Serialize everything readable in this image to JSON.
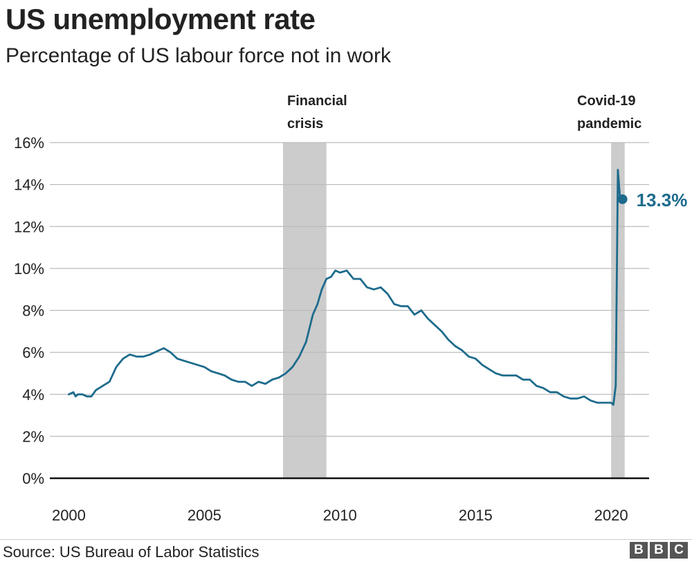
{
  "title": "US unemployment rate",
  "subtitle": "Percentage of US labour force not in work",
  "source": "Source: US Bureau of Labor Statistics",
  "logo": [
    "B",
    "B",
    "C"
  ],
  "colors": {
    "line": "#1d6b8c",
    "band": "#cccccc",
    "grid": "#bbbbbb",
    "text": "#222222"
  },
  "chart_data": {
    "type": "line",
    "title": "US unemployment rate",
    "ylabel": "",
    "xlabel": "",
    "xlim": [
      1999.3,
      2021.4
    ],
    "ylim": [
      0,
      16
    ],
    "grid": true,
    "x_ticks": [
      {
        "value": 2000,
        "label": "2000"
      },
      {
        "value": 2005,
        "label": "2005"
      },
      {
        "value": 2010,
        "label": "2010"
      },
      {
        "value": 2015,
        "label": "2015"
      },
      {
        "value": 2020,
        "label": "2020"
      }
    ],
    "y_ticks": [
      {
        "value": 0,
        "label": "0%"
      },
      {
        "value": 2,
        "label": "2%"
      },
      {
        "value": 4,
        "label": "4%"
      },
      {
        "value": 6,
        "label": "6%"
      },
      {
        "value": 8,
        "label": "8%"
      },
      {
        "value": 10,
        "label": "10%"
      },
      {
        "value": 12,
        "label": "12%"
      },
      {
        "value": 14,
        "label": "14%"
      },
      {
        "value": 16,
        "label": "16%"
      }
    ],
    "shaded_periods": [
      {
        "label": [
          "Financial",
          "crisis"
        ],
        "start": 2007.9,
        "end": 2009.5
      },
      {
        "label": [
          "Covid-19",
          "pandemic"
        ],
        "start": 2020.0,
        "end": 2020.5
      }
    ],
    "series": [
      {
        "x": [
          2000.0,
          2000.17,
          2000.25,
          2000.33,
          2000.5,
          2000.67,
          2000.83,
          2001.0,
          2001.25,
          2001.5,
          2001.75,
          2002.0,
          2002.25,
          2002.5,
          2002.75,
          2003.0,
          2003.17,
          2003.33,
          2003.5,
          2003.75,
          2004.0,
          2004.25,
          2004.5,
          2004.75,
          2005.0,
          2005.25,
          2005.5,
          2005.75,
          2006.0,
          2006.25,
          2006.5,
          2006.75,
          2007.0,
          2007.25,
          2007.5,
          2007.75,
          2008.0,
          2008.25,
          2008.5,
          2008.75,
          2009.0,
          2009.17,
          2009.33,
          2009.5,
          2009.67,
          2009.83,
          2010.0,
          2010.25,
          2010.5,
          2010.75,
          2011.0,
          2011.25,
          2011.5,
          2011.75,
          2012.0,
          2012.25,
          2012.5,
          2012.75,
          2013.0,
          2013.25,
          2013.5,
          2013.75,
          2014.0,
          2014.25,
          2014.5,
          2014.75,
          2015.0,
          2015.25,
          2015.5,
          2015.75,
          2016.0,
          2016.25,
          2016.5,
          2016.75,
          2017.0,
          2017.25,
          2017.5,
          2017.75,
          2018.0,
          2018.25,
          2018.5,
          2018.75,
          2019.0,
          2019.25,
          2019.5,
          2019.75,
          2020.0,
          2020.08,
          2020.17,
          2020.25,
          2020.33,
          2020.42
        ],
        "values": [
          4.0,
          4.1,
          3.9,
          4.0,
          4.0,
          3.9,
          3.9,
          4.2,
          4.4,
          4.6,
          5.3,
          5.7,
          5.9,
          5.8,
          5.8,
          5.9,
          6.0,
          6.1,
          6.2,
          6.0,
          5.7,
          5.6,
          5.5,
          5.4,
          5.3,
          5.1,
          5.0,
          4.9,
          4.7,
          4.6,
          4.6,
          4.4,
          4.6,
          4.5,
          4.7,
          4.8,
          5.0,
          5.3,
          5.8,
          6.5,
          7.8,
          8.3,
          9.0,
          9.5,
          9.6,
          9.9,
          9.8,
          9.9,
          9.5,
          9.5,
          9.1,
          9.0,
          9.1,
          8.8,
          8.3,
          8.2,
          8.2,
          7.8,
          8.0,
          7.6,
          7.3,
          7.0,
          6.6,
          6.3,
          6.1,
          5.8,
          5.7,
          5.4,
          5.2,
          5.0,
          4.9,
          4.9,
          4.9,
          4.7,
          4.7,
          4.4,
          4.3,
          4.1,
          4.1,
          3.9,
          3.8,
          3.8,
          3.9,
          3.7,
          3.6,
          3.6,
          3.6,
          3.5,
          4.4,
          14.7,
          13.3,
          13.3
        ]
      }
    ],
    "highlight": {
      "x": 2020.42,
      "value": 13.3,
      "label": "13.3%"
    }
  }
}
